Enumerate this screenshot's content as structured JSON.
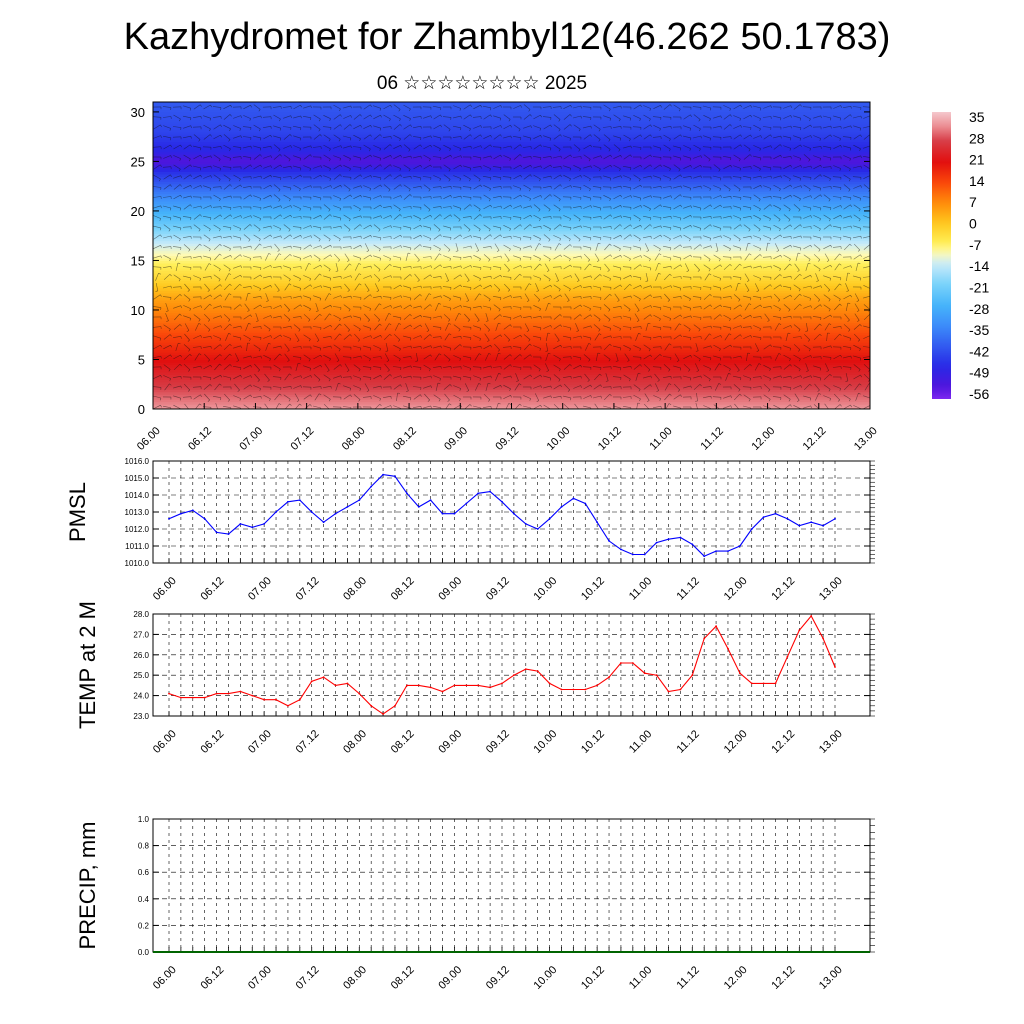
{
  "title": "Kazhydromet for Zhambyl12(46.262 50.1783)",
  "subtitle": "06 ☆☆☆☆☆☆☆☆ 2025",
  "chart_data": [
    {
      "type": "heatmap",
      "yticks": [
        "0",
        "5",
        "10",
        "15",
        "20",
        "25",
        "30"
      ],
      "xticks": [
        "06.00",
        "06.12",
        "07.00",
        "07.12",
        "08.00",
        "08.12",
        "09.00",
        "09.12",
        "10.00",
        "10.12",
        "11.00",
        "11.12",
        "12.00",
        "12.12",
        "13.00"
      ],
      "ylim": [
        0,
        31
      ],
      "colorbar": {
        "labels": [
          "35",
          "28",
          "21",
          "14",
          "7",
          "0",
          "-7",
          "-14",
          "-21",
          "-28",
          "-35",
          "-42",
          "-49",
          "-56"
        ],
        "range": [
          -60,
          38
        ]
      },
      "profile": [
        {
          "z": 0,
          "t": 34
        },
        {
          "z": 3,
          "t": 26
        },
        {
          "z": 6,
          "t": 18
        },
        {
          "z": 9,
          "t": 10
        },
        {
          "z": 11,
          "t": 5
        },
        {
          "z": 13,
          "t": -2
        },
        {
          "z": 15,
          "t": -8
        },
        {
          "z": 16.5,
          "t": -13
        },
        {
          "z": 18,
          "t": -20
        },
        {
          "z": 20,
          "t": -29
        },
        {
          "z": 22,
          "t": -38
        },
        {
          "z": 24,
          "t": -48
        },
        {
          "z": 25,
          "t": -56
        },
        {
          "z": 26,
          "t": -50
        },
        {
          "z": 28,
          "t": -45
        },
        {
          "z": 31,
          "t": -42
        }
      ]
    },
    {
      "type": "line",
      "ylabel": "PMSL",
      "xticks": [
        "06.00",
        "06.12",
        "07.00",
        "07.12",
        "08.00",
        "08.12",
        "09.00",
        "09.12",
        "10.00",
        "10.12",
        "11.00",
        "11.12",
        "12.00",
        "12.12",
        "13.00"
      ],
      "yticks": [
        "1010.0",
        "1011.0",
        "1012.0",
        "1013.0",
        "1014.0",
        "1015.0",
        "1016.0"
      ],
      "ylim": [
        1010,
        1016
      ],
      "color": "#0000ff",
      "values": [
        1012.6,
        1012.9,
        1013.1,
        1012.6,
        1011.8,
        1011.7,
        1012.3,
        1012.1,
        1012.3,
        1013.0,
        1013.6,
        1013.7,
        1013.0,
        1012.4,
        1012.9,
        1013.3,
        1013.7,
        1014.5,
        1015.2,
        1015.1,
        1014.1,
        1013.3,
        1013.7,
        1012.9,
        1012.9,
        1013.5,
        1014.1,
        1014.2,
        1013.6,
        1012.9,
        1012.3,
        1012.0,
        1012.6,
        1013.3,
        1013.8,
        1013.5,
        1012.4,
        1011.3,
        1010.8,
        1010.5,
        1010.5,
        1011.2,
        1011.4,
        1011.5,
        1011.1,
        1010.4,
        1010.7,
        1010.7,
        1011.0,
        1012.0,
        1012.7,
        1012.9,
        1012.6,
        1012.2,
        1012.4,
        1012.2,
        1012.6
      ]
    },
    {
      "type": "line",
      "ylabel": "TEMP at 2 M",
      "xticks": [
        "06.00",
        "06.12",
        "07.00",
        "07.12",
        "08.00",
        "08.12",
        "09.00",
        "09.12",
        "10.00",
        "10.12",
        "11.00",
        "11.12",
        "12.00",
        "12.12",
        "13.00"
      ],
      "yticks": [
        "23.0",
        "24.0",
        "25.0",
        "26.0",
        "27.0",
        "28.0"
      ],
      "ylim": [
        23,
        28
      ],
      "color": "#ff0000",
      "values": [
        24.1,
        23.9,
        23.9,
        23.9,
        24.1,
        24.1,
        24.2,
        24.0,
        23.8,
        23.8,
        23.5,
        23.8,
        24.7,
        24.9,
        24.5,
        24.6,
        24.1,
        23.5,
        23.1,
        23.5,
        24.5,
        24.5,
        24.4,
        24.2,
        24.5,
        24.5,
        24.5,
        24.4,
        24.6,
        25.0,
        25.3,
        25.2,
        24.6,
        24.3,
        24.3,
        24.3,
        24.5,
        24.9,
        25.6,
        25.6,
        25.1,
        25.0,
        24.2,
        24.3,
        25.0,
        26.8,
        27.4,
        26.3,
        25.1,
        24.6,
        24.6,
        24.6,
        25.9,
        27.2,
        27.9,
        26.8,
        25.4
      ]
    },
    {
      "type": "bar",
      "ylabel": "PRECIP, mm",
      "xticks": [
        "06.00",
        "06.12",
        "07.00",
        "07.12",
        "08.00",
        "08.12",
        "09.00",
        "09.12",
        "10.00",
        "10.12",
        "11.00",
        "11.12",
        "12.00",
        "12.12",
        "13.00"
      ],
      "yticks": [
        "0.0",
        "0.2",
        "0.4",
        "0.6",
        "0.8",
        "1.0"
      ],
      "ylim": [
        0,
        1
      ],
      "values": [
        0,
        0,
        0,
        0,
        0,
        0,
        0,
        0,
        0,
        0,
        0,
        0,
        0,
        0,
        0,
        0,
        0,
        0,
        0,
        0,
        0,
        0,
        0,
        0,
        0,
        0,
        0,
        0,
        0,
        0,
        0,
        0,
        0,
        0,
        0,
        0,
        0,
        0,
        0,
        0,
        0,
        0,
        0,
        0,
        0,
        0,
        0,
        0,
        0,
        0,
        0,
        0,
        0,
        0,
        0,
        0,
        0
      ]
    }
  ]
}
